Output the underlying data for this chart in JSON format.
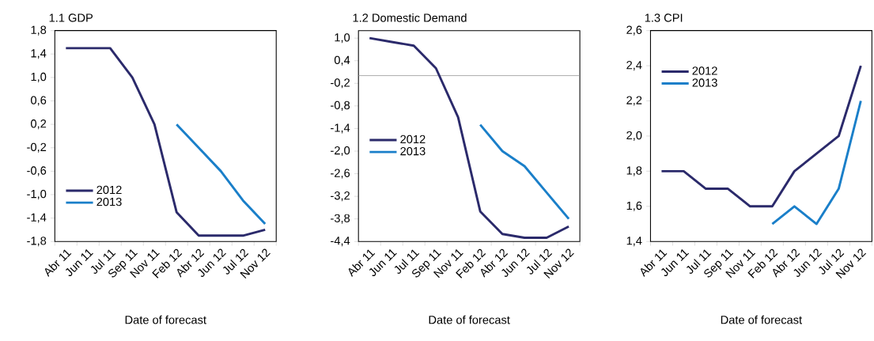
{
  "chart_data": [
    {
      "type": "line",
      "title": "1.1 GDP",
      "xlabel": "Date of forecast",
      "categories": [
        "Abr 11",
        "Jun 11",
        "Jul 11",
        "Sep 11",
        "Nov 11",
        "Feb 12",
        "Abr 12",
        "Jun 12",
        "Jul 12",
        "Nov 12"
      ],
      "series": [
        {
          "name": "2012",
          "color": "#2b2a6b",
          "values": [
            1.5,
            1.5,
            1.5,
            1.0,
            0.2,
            -1.3,
            -1.7,
            -1.7,
            -1.7,
            -1.6
          ]
        },
        {
          "name": "2013",
          "color": "#1a7fc9",
          "values": [
            null,
            null,
            null,
            null,
            null,
            0.2,
            -0.2,
            -0.6,
            -1.1,
            -1.5
          ]
        }
      ],
      "ylim": [
        -1.8,
        1.8
      ],
      "yticks": [
        {
          "value": -1.8,
          "label": "-1,8"
        },
        {
          "value": -1.4,
          "label": "-1,4"
        },
        {
          "value": -1.0,
          "label": "-1,0"
        },
        {
          "value": -0.6,
          "label": "-0,6"
        },
        {
          "value": -0.2,
          "label": "-0,2"
        },
        {
          "value": 0.2,
          "label": "0,2"
        },
        {
          "value": 0.6,
          "label": "0,6"
        },
        {
          "value": 1.0,
          "label": "1,0"
        },
        {
          "value": 1.4,
          "label": "1,4"
        },
        {
          "value": 1.8,
          "label": "1,8"
        }
      ],
      "grid": false,
      "legend": "bottom left",
      "marker": "none",
      "line_style": "solid"
    },
    {
      "type": "line",
      "title": "1.2 Domestic Demand",
      "xlabel": "Date of forecast",
      "categories": [
        "Abr 11",
        "Jun 11",
        "Jul 11",
        "Sep 11",
        "Nov 11",
        "Feb 12",
        "Abr 12",
        "Jun 12",
        "Jul 12",
        "Nov 12"
      ],
      "series": [
        {
          "name": "2012",
          "color": "#2b2a6b",
          "values": [
            1.0,
            0.9,
            0.8,
            0.2,
            -1.1,
            -3.6,
            -4.2,
            -4.3,
            -4.3,
            -4.0
          ]
        },
        {
          "name": "2013",
          "color": "#1a7fc9",
          "values": [
            null,
            null,
            null,
            null,
            null,
            -1.3,
            -2.0,
            -2.4,
            -3.1,
            -3.8
          ]
        }
      ],
      "ylim": [
        -4.4,
        1.2
      ],
      "yticks": [
        {
          "value": -4.4,
          "label": "-4,4"
        },
        {
          "value": -3.8,
          "label": "-3,8"
        },
        {
          "value": -3.2,
          "label": "-3,2"
        },
        {
          "value": -2.6,
          "label": "-2,6"
        },
        {
          "value": -2.0,
          "label": "-2,0"
        },
        {
          "value": -1.4,
          "label": "-1,4"
        },
        {
          "value": -0.8,
          "label": "-0,8"
        },
        {
          "value": -0.2,
          "label": "-0,2"
        },
        {
          "value": 0.4,
          "label": "0,4"
        },
        {
          "value": 1.0,
          "label": "1,0"
        }
      ],
      "ref_lines": [
        {
          "axis": "y",
          "value": 0,
          "color": "#9a9a9a"
        }
      ],
      "grid": false,
      "legend": "left",
      "marker": "none",
      "line_style": "solid"
    },
    {
      "type": "line",
      "title": "1.3 CPI",
      "xlabel": "Date of forecast",
      "categories": [
        "Abr 11",
        "Jun 11",
        "Jul 11",
        "Sep 11",
        "Nov 11",
        "Feb 12",
        "Abr 12",
        "Jun 12",
        "Jul 12",
        "Nov 12"
      ],
      "series": [
        {
          "name": "2012",
          "color": "#2b2a6b",
          "values": [
            1.8,
            1.8,
            1.7,
            1.7,
            1.6,
            1.6,
            1.8,
            1.9,
            2.0,
            2.4
          ]
        },
        {
          "name": "2013",
          "color": "#1a7fc9",
          "values": [
            null,
            null,
            null,
            null,
            null,
            1.5,
            1.6,
            1.5,
            1.7,
            2.2
          ]
        }
      ],
      "ylim": [
        1.4,
        2.6
      ],
      "yticks": [
        {
          "value": 1.4,
          "label": "1,4"
        },
        {
          "value": 1.6,
          "label": "1,6"
        },
        {
          "value": 1.8,
          "label": "1,8"
        },
        {
          "value": 2.0,
          "label": "2,0"
        },
        {
          "value": 2.2,
          "label": "2,2"
        },
        {
          "value": 2.4,
          "label": "2,4"
        },
        {
          "value": 2.6,
          "label": "2,6"
        }
      ],
      "grid": false,
      "legend": "top left",
      "marker": "none",
      "line_style": "solid"
    }
  ]
}
